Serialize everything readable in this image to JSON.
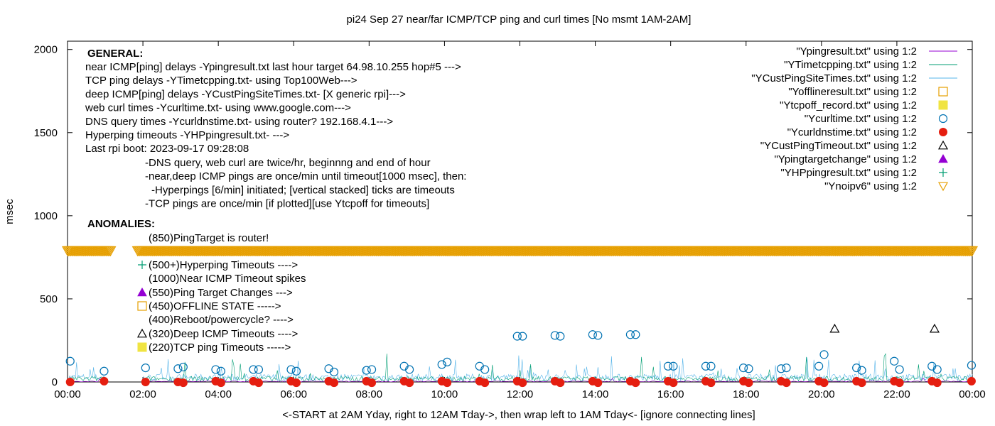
{
  "chart_data": {
    "type": "line",
    "title": "pi24 Sep 27  near/far ICMP/TCP ping and curl times [No msmt 1AM-2AM]",
    "xlabel": "<-START at 2AM Yday, right to 12AM Tday->, then wrap left to 1AM Tday<- [ignore connecting lines]",
    "ylabel": "msec",
    "xlim": [
      0,
      24
    ],
    "ylim": [
      0,
      2050
    ],
    "x_ticks": [
      {
        "v": 0,
        "label": "00:00"
      },
      {
        "v": 2,
        "label": "02:00"
      },
      {
        "v": 4,
        "label": "04:00"
      },
      {
        "v": 6,
        "label": "06:00"
      },
      {
        "v": 8,
        "label": "08:00"
      },
      {
        "v": 10,
        "label": "10:00"
      },
      {
        "v": 12,
        "label": "12:00"
      },
      {
        "v": 14,
        "label": "14:00"
      },
      {
        "v": 16,
        "label": "16:00"
      },
      {
        "v": 18,
        "label": "18:00"
      },
      {
        "v": 20,
        "label": "20:00"
      },
      {
        "v": 22,
        "label": "22:00"
      },
      {
        "v": 24,
        "label": "00:00"
      }
    ],
    "y_ticks": [
      {
        "v": 0,
        "label": "0"
      },
      {
        "v": 500,
        "label": "500"
      },
      {
        "v": 1000,
        "label": "1000"
      },
      {
        "v": 1500,
        "label": "1500"
      },
      {
        "v": 2000,
        "label": "2000"
      }
    ],
    "grid": false,
    "legend_position": "top-right",
    "legend": [
      {
        "label": "\"Ypingresult.txt\" using 1:2",
        "marker": "line",
        "color": "#9400d3"
      },
      {
        "label": "\"YTimetcpping.txt\" using 1:2",
        "marker": "line",
        "color": "#009e73"
      },
      {
        "label": "\"YCustPingSiteTimes.txt\" using 1:2",
        "marker": "line",
        "color": "#56b4e9"
      },
      {
        "label": "\"Yofflineresult.txt\" using 1:2",
        "marker": "square-open",
        "color": "#e69f00"
      },
      {
        "label": "\"Ytcpoff_record.txt\" using 1:2",
        "marker": "square-filled",
        "color": "#f0e442"
      },
      {
        "label": "\"Ycurltime.txt\" using 1:2",
        "marker": "circle-open",
        "color": "#0072b2"
      },
      {
        "label": "\"Ycurldnstime.txt\" using 1:2",
        "marker": "circle-filled",
        "color": "#e51e10"
      },
      {
        "label": "\"YCustPingTimeout.txt\" using 1:2",
        "marker": "triangle-open",
        "color": "#000000"
      },
      {
        "label": "\"Ypingtargetchange\" using 1:2",
        "marker": "triangle-filled",
        "color": "#9400d3"
      },
      {
        "label": "\"YHPpingresult.txt\" using 1:2",
        "marker": "plus",
        "color": "#009e73"
      },
      {
        "label": "\"Ynoipv6\" using 1:2",
        "marker": "triangle-down-open",
        "color": "#e69f00"
      }
    ],
    "annotations": {
      "general_heading": "GENERAL:",
      "general_lines": [
        "near ICMP[ping] delays -Ypingresult.txt last hour target 64.98.10.255 hop#5 --->",
        "TCP ping delays -YTimetcpping.txt- using Top100Web--->",
        "deep ICMP[ping] delays -YCustPingSiteTimes.txt- [X generic rpi]--->",
        "web curl times -Ycurltime.txt- using www.google.com--->",
        "DNS query times -Ycurldnstime.txt- using router? 192.168.4.1--->",
        "Hyperping timeouts -YHPpingresult.txt- --->",
        "Last rpi boot: 2023-09-17 09:28:08"
      ],
      "general_notes": [
        "-DNS query, web curl are twice/hr, beginnng and end of hour",
        "-near,deep ICMP pings are once/min until timeout[1000 msec], then:",
        "-Hyperpings [6/min] initiated; [vertical stacked] ticks are timeouts",
        "-TCP pings are once/min [if plotted][use Ytcpoff for timeouts]"
      ],
      "anomalies_heading": "ANOMALIES:",
      "anomaly_lines": [
        {
          "text": "(850)PingTarget is router!",
          "marker": "none",
          "color": "#000000"
        },
        {
          "text": "(500+)Hyperping Timeouts ---->",
          "marker": "plus",
          "color": "#009e73"
        },
        {
          "text": "(1000)Near ICMP Timeout spikes",
          "marker": "none",
          "color": "#000000"
        },
        {
          "text": "(550)Ping Target Changes --->",
          "marker": "triangle-filled",
          "color": "#9400d3"
        },
        {
          "text": "(450)OFFLINE STATE ----->",
          "marker": "square-open",
          "color": "#e69f00"
        },
        {
          "text": "(400)Reboot/powercycle? ---->",
          "marker": "none",
          "color": "#000000"
        },
        {
          "text": "(320)Deep ICMP Timeouts ---->",
          "marker": "triangle-open",
          "color": "#000000"
        },
        {
          "text": "(220)TCP ping Timeouts ----->",
          "marker": "square-filled",
          "color": "#f0e442"
        }
      ]
    },
    "series": [
      {
        "name": "\"Ycurltime.txt\" using 1:2",
        "marker": "circle-open",
        "color": "#0072b2",
        "x": [
          0.07,
          0.97,
          2.07,
          2.93,
          3.07,
          3.93,
          4.07,
          4.93,
          5.07,
          5.93,
          6.07,
          6.93,
          7.07,
          7.93,
          8.07,
          8.93,
          9.07,
          9.93,
          10.07,
          10.93,
          11.07,
          11.93,
          12.07,
          12.93,
          13.07,
          13.93,
          14.07,
          14.93,
          15.07,
          15.93,
          16.07,
          16.93,
          17.07,
          17.93,
          18.07,
          18.93,
          19.07,
          19.93,
          20.07,
          20.93,
          21.07,
          21.93,
          22.07,
          22.93,
          23.07,
          23.98
        ],
        "y": [
          125,
          65,
          85,
          80,
          90,
          75,
          65,
          75,
          75,
          75,
          65,
          80,
          60,
          70,
          75,
          95,
          75,
          105,
          120,
          95,
          75,
          275,
          275,
          280,
          275,
          285,
          280,
          285,
          285,
          95,
          95,
          95,
          95,
          85,
          80,
          80,
          85,
          95,
          165,
          85,
          70,
          125,
          75,
          95,
          75,
          100
        ]
      },
      {
        "name": "\"Ycurldnstime.txt\" using 1:2",
        "marker": "circle-filled",
        "color": "#e51e10",
        "x": [
          0.07,
          0.97,
          2.07,
          2.93,
          3.07,
          3.93,
          4.07,
          4.93,
          5.07,
          5.93,
          6.07,
          6.93,
          7.07,
          7.93,
          8.07,
          8.93,
          9.07,
          9.93,
          10.07,
          10.93,
          11.07,
          11.93,
          12.07,
          12.93,
          13.07,
          13.93,
          14.07,
          14.93,
          15.07,
          15.93,
          16.07,
          16.93,
          17.07,
          17.93,
          18.07,
          18.93,
          19.07,
          19.93,
          20.07,
          20.93,
          21.07,
          21.93,
          22.07,
          22.93,
          23.07,
          23.98
        ],
        "y": [
          0,
          5,
          0,
          0,
          -5,
          5,
          -5,
          5,
          -5,
          5,
          -5,
          5,
          -5,
          5,
          -5,
          5,
          -5,
          5,
          -5,
          5,
          -5,
          5,
          -5,
          5,
          -5,
          5,
          -5,
          5,
          -5,
          5,
          -5,
          5,
          -5,
          5,
          -5,
          5,
          -5,
          5,
          -5,
          5,
          -5,
          5,
          -5,
          5,
          -5,
          5
        ]
      },
      {
        "name": "\"YCustPingTimeout.txt\" using 1:2",
        "marker": "triangle-open",
        "color": "#000000",
        "x": [
          20.35,
          23.0
        ],
        "y": [
          320,
          320
        ]
      },
      {
        "name": "\"Ynoipv6\" using 1:2",
        "marker": "triangle-down-open",
        "color": "#e69f00",
        "x_range": [
          0,
          24
        ],
        "x_gap": [
          1.15,
          1.85
        ],
        "y": 790
      }
    ]
  }
}
